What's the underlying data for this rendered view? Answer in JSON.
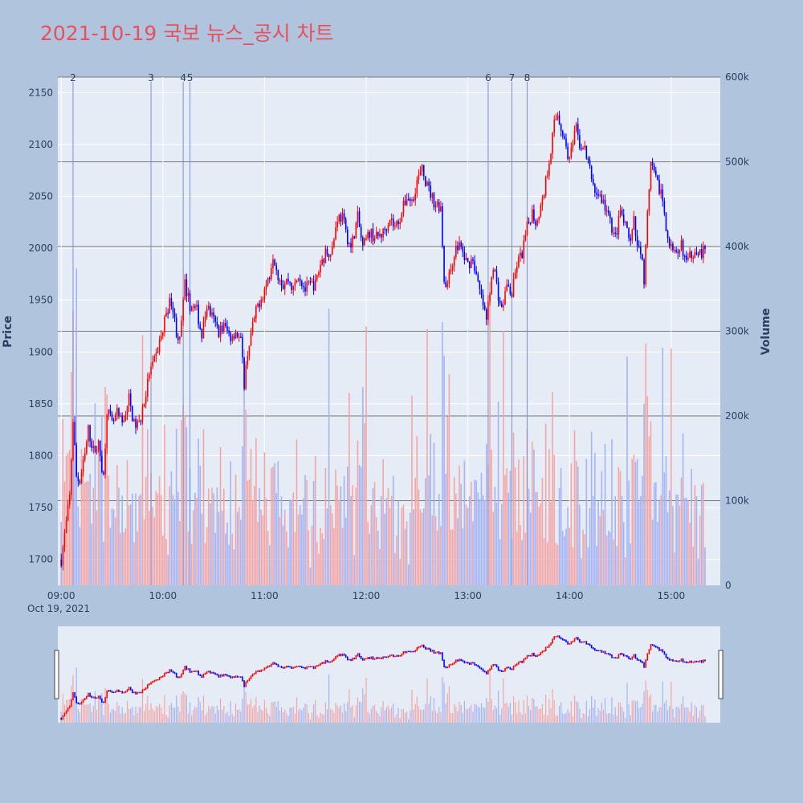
{
  "title": "2021-10-19 국보 뉴스_공시 차트",
  "colors": {
    "background": "#b0c4de",
    "plot_bg": "#e5ecf6",
    "up": "#ff0000",
    "down": "#0000ff",
    "title": "#e8505b",
    "vol_up": "#f4a6a6",
    "vol_down": "#a6b4f4",
    "news_line": "#7b8fe0"
  },
  "chart_data": {
    "type": "candlestick+volume",
    "x_axis": {
      "ticks": [
        "09:00",
        "10:00",
        "11:00",
        "12:00",
        "13:00",
        "14:00",
        "15:00"
      ],
      "date_label": "Oct 19, 2021"
    },
    "y_price": {
      "label": "Price",
      "ticks": [
        1700,
        1750,
        1800,
        1850,
        1900,
        1950,
        2000,
        2050,
        2100,
        2150
      ],
      "range": [
        1675,
        2165
      ]
    },
    "y_volume": {
      "label": "Volume",
      "ticks": [
        "0",
        "100k",
        "200k",
        "300k",
        "400k",
        "500k",
        "600k"
      ],
      "range": [
        0,
        600000
      ]
    },
    "news_markers": [
      {
        "label": "2",
        "time": "09:07"
      },
      {
        "label": "3",
        "time": "09:53"
      },
      {
        "label": "4",
        "time": "10:12"
      },
      {
        "label": "5",
        "time": "10:16"
      },
      {
        "label": "6",
        "time": "13:12"
      },
      {
        "label": "7",
        "time": "13:26"
      },
      {
        "label": "8",
        "time": "13:35"
      }
    ],
    "price_path": [
      [
        "09:00",
        1700
      ],
      [
        "09:03",
        1735
      ],
      [
        "09:05",
        1760
      ],
      [
        "09:07",
        1835
      ],
      [
        "09:09",
        1780
      ],
      [
        "09:11",
        1775
      ],
      [
        "09:14",
        1800
      ],
      [
        "09:16",
        1825
      ],
      [
        "09:19",
        1805
      ],
      [
        "09:22",
        1810
      ],
      [
        "09:25",
        1780
      ],
      [
        "09:27",
        1845
      ],
      [
        "09:30",
        1830
      ],
      [
        "09:33",
        1840
      ],
      [
        "09:36",
        1830
      ],
      [
        "09:40",
        1855
      ],
      [
        "09:43",
        1830
      ],
      [
        "09:46",
        1830
      ],
      [
        "09:50",
        1860
      ],
      [
        "09:52",
        1880
      ],
      [
        "09:55",
        1890
      ],
      [
        "09:58",
        1910
      ],
      [
        "10:00",
        1920
      ],
      [
        "10:02",
        1940
      ],
      [
        "10:05",
        1950
      ],
      [
        "10:08",
        1920
      ],
      [
        "10:10",
        1910
      ],
      [
        "10:13",
        1965
      ],
      [
        "10:16",
        1945
      ],
      [
        "10:20",
        1940
      ],
      [
        "10:23",
        1915
      ],
      [
        "10:26",
        1945
      ],
      [
        "10:30",
        1930
      ],
      [
        "10:33",
        1920
      ],
      [
        "10:36",
        1925
      ],
      [
        "10:40",
        1915
      ],
      [
        "10:43",
        1920
      ],
      [
        "10:46",
        1910
      ],
      [
        "10:48",
        1870
      ],
      [
        "10:50",
        1900
      ],
      [
        "10:53",
        1925
      ],
      [
        "10:56",
        1945
      ],
      [
        "11:00",
        1960
      ],
      [
        "11:03",
        1975
      ],
      [
        "11:05",
        1995
      ],
      [
        "11:08",
        1975
      ],
      [
        "11:11",
        1965
      ],
      [
        "11:14",
        1970
      ],
      [
        "11:17",
        1960
      ],
      [
        "11:20",
        1975
      ],
      [
        "11:24",
        1960
      ],
      [
        "11:27",
        1965
      ],
      [
        "11:30",
        1965
      ],
      [
        "11:33",
        1985
      ],
      [
        "11:36",
        1995
      ],
      [
        "11:40",
        2000
      ],
      [
        "11:43",
        2030
      ],
      [
        "11:46",
        2030
      ],
      [
        "11:48",
        2015
      ],
      [
        "11:51",
        2000
      ],
      [
        "11:55",
        2030
      ],
      [
        "11:58",
        2000
      ],
      [
        "12:02",
        2015
      ],
      [
        "12:06",
        2010
      ],
      [
        "12:10",
        2015
      ],
      [
        "12:14",
        2030
      ],
      [
        "12:17",
        2020
      ],
      [
        "12:20",
        2030
      ],
      [
        "12:24",
        2050
      ],
      [
        "12:27",
        2045
      ],
      [
        "12:30",
        2065
      ],
      [
        "12:33",
        2075
      ],
      [
        "12:36",
        2060
      ],
      [
        "12:40",
        2045
      ],
      [
        "12:44",
        2040
      ],
      [
        "12:46",
        1970
      ],
      [
        "12:48",
        1965
      ],
      [
        "12:52",
        1995
      ],
      [
        "12:55",
        2005
      ],
      [
        "12:58",
        1990
      ],
      [
        "13:00",
        1985
      ],
      [
        "13:03",
        1990
      ],
      [
        "13:06",
        1965
      ],
      [
        "13:09",
        1945
      ],
      [
        "13:11",
        1930
      ],
      [
        "13:13",
        1960
      ],
      [
        "13:15",
        1985
      ],
      [
        "13:18",
        1955
      ],
      [
        "13:20",
        1940
      ],
      [
        "13:23",
        1965
      ],
      [
        "13:26",
        1955
      ],
      [
        "13:29",
        1985
      ],
      [
        "13:32",
        1995
      ],
      [
        "13:35",
        2020
      ],
      [
        "13:38",
        2035
      ],
      [
        "13:40",
        2025
      ],
      [
        "13:44",
        2045
      ],
      [
        "13:48",
        2085
      ],
      [
        "13:51",
        2120
      ],
      [
        "13:53",
        2130
      ],
      [
        "13:56",
        2110
      ],
      [
        "14:00",
        2085
      ],
      [
        "14:02",
        2100
      ],
      [
        "14:04",
        2115
      ],
      [
        "14:06",
        2100
      ],
      [
        "14:09",
        2095
      ],
      [
        "14:12",
        2075
      ],
      [
        "14:15",
        2055
      ],
      [
        "14:18",
        2050
      ],
      [
        "14:21",
        2040
      ],
      [
        "14:24",
        2025
      ],
      [
        "14:27",
        2010
      ],
      [
        "14:30",
        2035
      ],
      [
        "14:33",
        2020
      ],
      [
        "14:36",
        2005
      ],
      [
        "14:38",
        2025
      ],
      [
        "14:40",
        2000
      ],
      [
        "14:42",
        2000
      ],
      [
        "14:44",
        1970
      ],
      [
        "14:46",
        2030
      ],
      [
        "14:48",
        2080
      ],
      [
        "14:51",
        2065
      ],
      [
        "14:54",
        2055
      ],
      [
        "14:56",
        2035
      ],
      [
        "14:58",
        2010
      ],
      [
        "15:01",
        1995
      ],
      [
        "15:04",
        1990
      ],
      [
        "15:06",
        2005
      ],
      [
        "15:09",
        1985
      ],
      [
        "15:12",
        1995
      ],
      [
        "15:15",
        2000
      ],
      [
        "15:18",
        1995
      ],
      [
        "15:20",
        2000
      ]
    ]
  }
}
